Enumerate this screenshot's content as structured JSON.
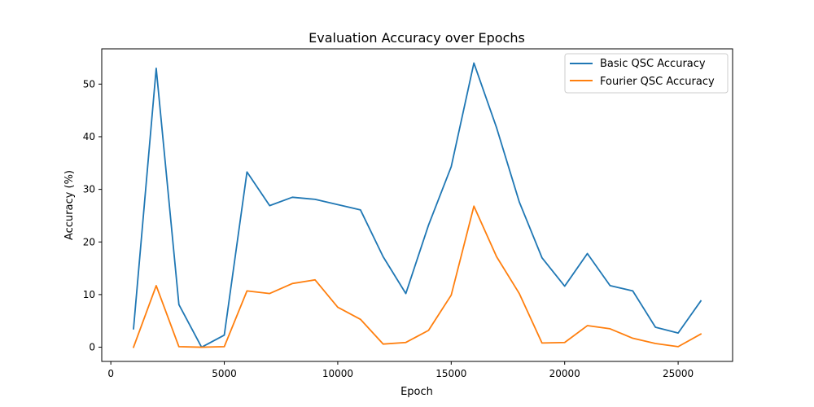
{
  "chart_data": {
    "type": "line",
    "title": "Evaluation Accuracy over Epochs",
    "xlabel": "Epoch",
    "ylabel": "Accuracy (%)",
    "xlim": [
      -400,
      27400
    ],
    "ylim": [
      -2.7,
      56.7
    ],
    "xticks": [
      0,
      5000,
      10000,
      15000,
      20000,
      25000
    ],
    "yticks": [
      0,
      10,
      20,
      30,
      40,
      50
    ],
    "grid": false,
    "legend_position": "top-right",
    "x": [
      1000,
      2000,
      3000,
      4000,
      5000,
      6000,
      7000,
      8000,
      9000,
      10000,
      11000,
      12000,
      13000,
      14000,
      15000,
      16000,
      17000,
      18000,
      19000,
      20000,
      21000,
      22000,
      23000,
      24000,
      25000,
      26000
    ],
    "series": [
      {
        "name": "Basic QSC Accuracy",
        "color": "#1f77b4",
        "values": [
          3.5,
          53.0,
          8.1,
          0.0,
          2.3,
          33.3,
          26.9,
          28.5,
          28.1,
          27.1,
          26.1,
          17.2,
          10.2,
          23.2,
          34.3,
          54.0,
          41.7,
          27.6,
          17.0,
          11.6,
          17.8,
          11.7,
          10.7,
          3.8,
          2.7,
          8.8
        ]
      },
      {
        "name": "Fourier QSC Accuracy",
        "color": "#ff7f0e",
        "values": [
          0.0,
          11.7,
          0.1,
          0.0,
          0.1,
          10.7,
          10.2,
          12.1,
          12.8,
          7.6,
          5.3,
          0.6,
          0.9,
          3.2,
          9.9,
          26.8,
          17.2,
          10.2,
          0.8,
          0.9,
          4.1,
          3.5,
          1.7,
          0.7,
          0.1,
          2.5
        ]
      }
    ]
  }
}
